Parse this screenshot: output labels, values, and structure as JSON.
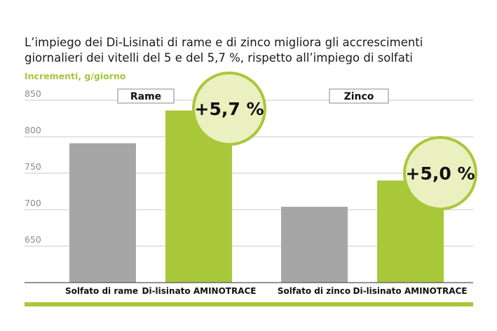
{
  "chart_data": {
    "type": "bar",
    "title": "L’impiego dei Di-Lisinati di rame e di zinco migliora gli accrescimenti giornalieri dei vitelli del 5 e del 5,7 %, rispetto all’impiego di solfati",
    "title_lines": [
      "L’impiego dei Di-Lisinati di rame e di zinco migliora gli accrescimenti",
      "giornalieri dei vitelli del 5 e del 5,7 %, rispetto all’impiego di solfati"
    ],
    "ylabel": "Incrementi, g/giorno",
    "ylim": [
      600,
      850
    ],
    "yticks": [
      650,
      700,
      750,
      800,
      850
    ],
    "grid": true,
    "groups": [
      {
        "label": "Rame",
        "badge": "+5,7 %",
        "categories": [
          "Solfato di rame",
          "Di-lisinato AMINOTRACE"
        ],
        "values": [
          791,
          836
        ]
      },
      {
        "label": "Zinco",
        "badge": "+5,0 %",
        "categories": [
          "Solfato di zinco",
          "Di-lisinato AMINOTRACE"
        ],
        "values": [
          704,
          740
        ]
      }
    ],
    "colors": {
      "solfato": "#a5a6a5",
      "aminotrace": "#a8c83a",
      "badge_fill": "#ebf0c0",
      "badge_stroke": "#a8c83a",
      "ylabel": "#a5c63b"
    }
  }
}
